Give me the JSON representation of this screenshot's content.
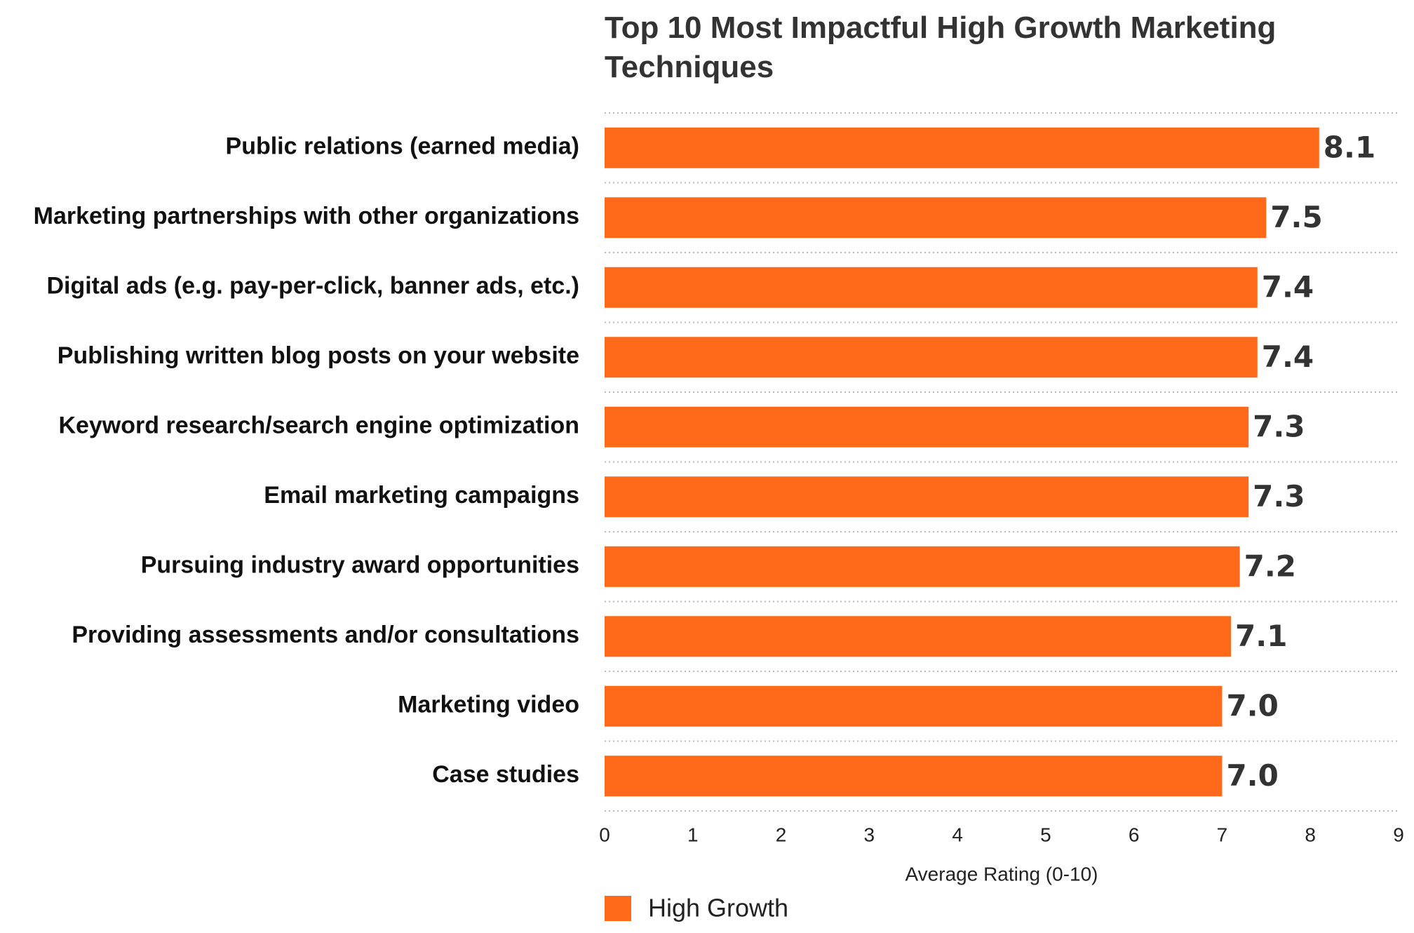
{
  "chart_data": {
    "type": "bar",
    "orientation": "horizontal",
    "title": "Top 10 Most Impactful High Growth Marketing Techniques",
    "categories": [
      "Public relations (earned media)",
      "Marketing partnerships with other organizations",
      "Digital ads (e.g. pay-per-click, banner ads, etc.)",
      "Publishing written blog posts on your website",
      "Keyword research/search engine optimization",
      "Email marketing campaigns",
      "Pursuing industry award opportunities",
      "Providing assessments and/or consultations",
      "Marketing video",
      "Case studies"
    ],
    "series": [
      {
        "name": "High Growth",
        "color": "#ff6a1a",
        "values": [
          8.1,
          7.5,
          7.4,
          7.4,
          7.3,
          7.3,
          7.2,
          7.1,
          7.0,
          7.0
        ],
        "value_labels": [
          "8.1",
          "7.5",
          "7.4",
          "7.4",
          "7.3",
          "7.3",
          "7.2",
          "7.1",
          "7.0",
          "7.0"
        ]
      }
    ],
    "xlabel": "Average Rating (0-10)",
    "xlim": [
      0,
      9
    ],
    "xticks": [
      0,
      1,
      2,
      3,
      4,
      5,
      6,
      7,
      8,
      9
    ],
    "legend": "bottom-left"
  }
}
